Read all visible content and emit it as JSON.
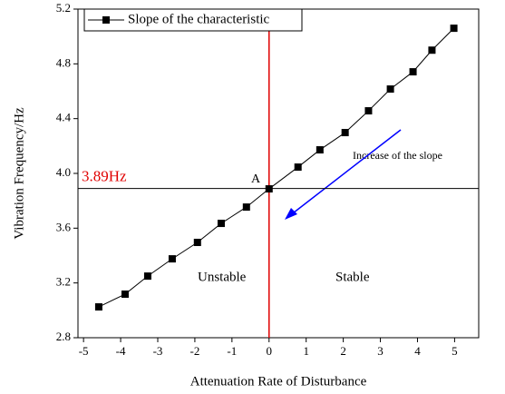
{
  "chart_data": {
    "type": "line",
    "x_label": "Attenuation Rate of Disturbance",
    "y_label": "Vibration Frequency/Hz",
    "x": [
      -4.59,
      -3.88,
      -3.27,
      -2.61,
      -1.93,
      -1.29,
      -0.61,
      0,
      0.78,
      1.37,
      2.05,
      2.68,
      3.27,
      3.88,
      4.39,
      4.98
    ],
    "series": [
      {
        "name": "Slope of the characteristic",
        "color": "#000000",
        "values": [
          3.025,
          3.118,
          3.25,
          3.376,
          3.496,
          3.635,
          3.754,
          3.887,
          4.046,
          4.172,
          4.298,
          4.457,
          4.616,
          4.742,
          4.9,
          5.06
        ]
      }
    ],
    "xlim": [
      -5.15,
      5.65
    ],
    "ylim": [
      2.8,
      5.2
    ],
    "xticks": [
      -5,
      -4,
      -3,
      -2,
      -1,
      0,
      1,
      2,
      3,
      4,
      5
    ],
    "yticks": [
      2.8,
      3.2,
      3.6,
      {
        "value": 4,
        "label": "4.0"
      },
      4.4,
      4.8,
      5.2
    ],
    "hline": {
      "value": 3.89,
      "label": "3.89Hz",
      "color": "#e00000"
    },
    "vline": {
      "value": 0,
      "color": "#e00000"
    },
    "annotations": {
      "point": "A",
      "arrow": "Increase of the slope",
      "left_region": "Unstable",
      "right_region": "Stable"
    },
    "legend": "top-left"
  }
}
